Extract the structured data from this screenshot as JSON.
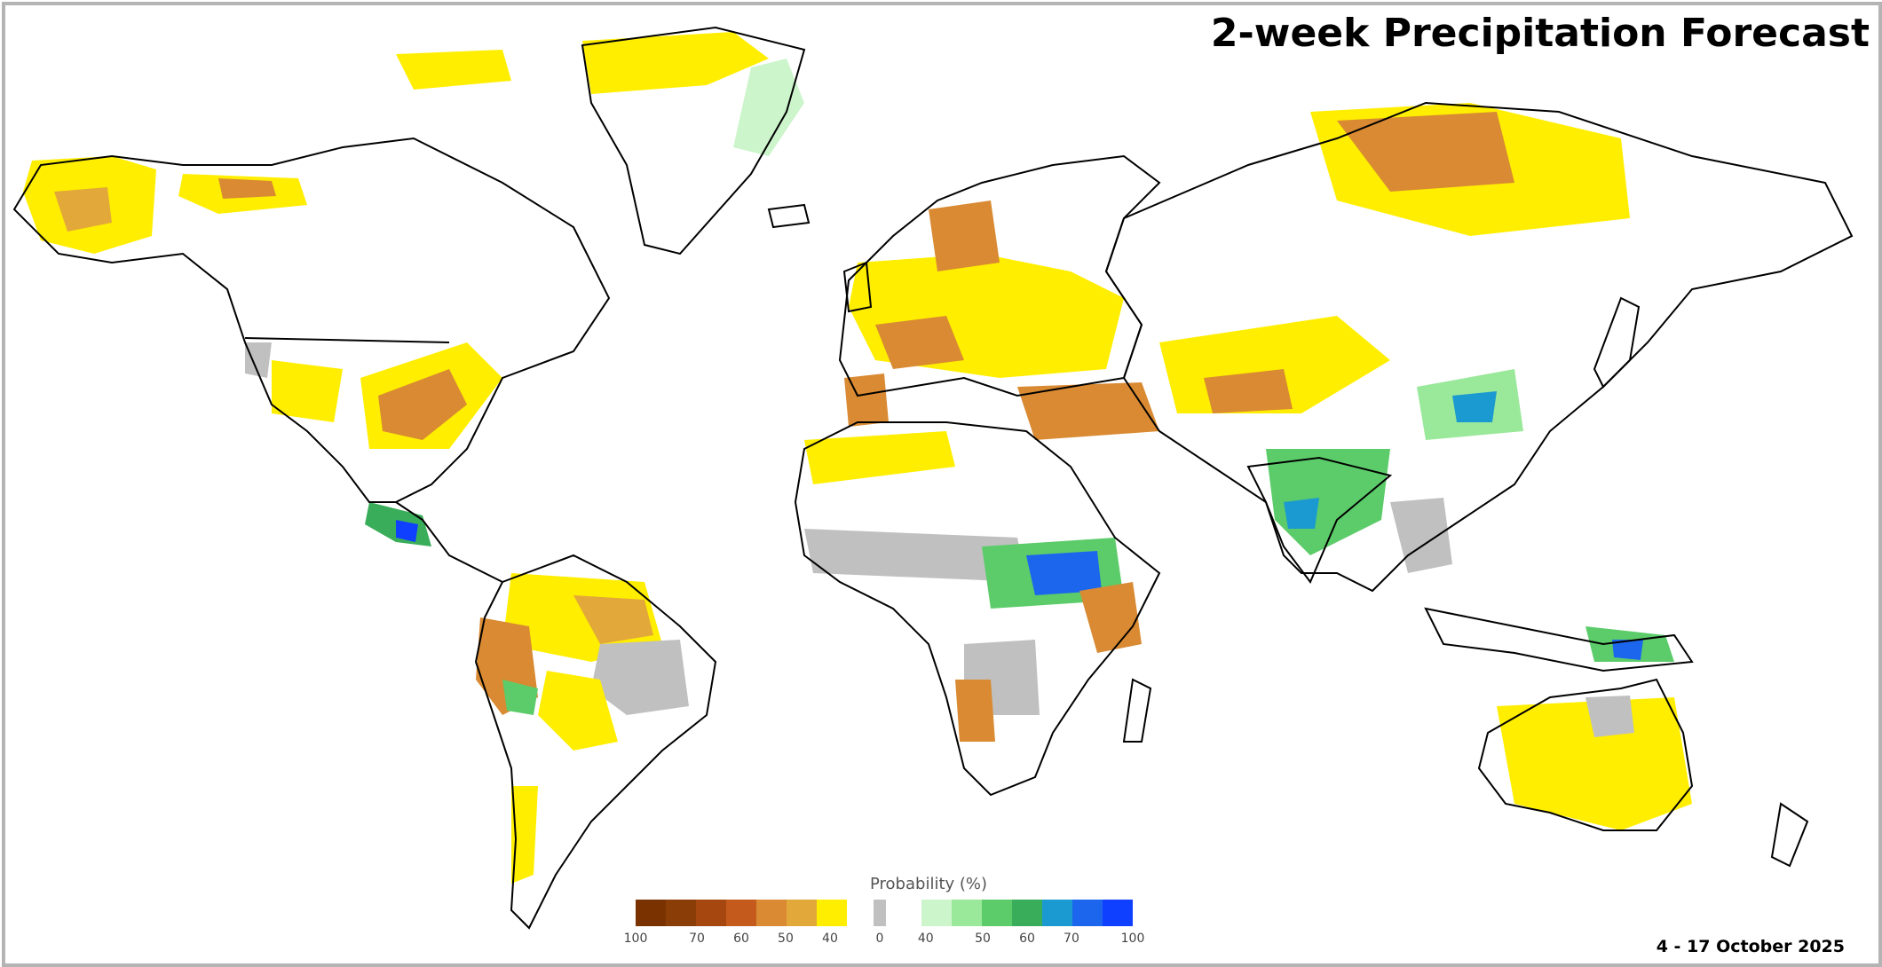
{
  "title": "2-week Precipitation Forecast",
  "date_range": "4 - 17 October 2025",
  "legend": {
    "title": "Probability (%)",
    "dry_colors": [
      "#7a3300",
      "#8a3d06",
      "#a5470f",
      "#c45a1c",
      "#d98a32",
      "#e3a83a",
      "#ffee00"
    ],
    "neutral_color": "#c0c0c0",
    "wet_colors": [
      "#ccf5cc",
      "#9ae89a",
      "#5ccc6a",
      "#3aad5a",
      "#1a9ad0",
      "#1c66ee",
      "#1040ff"
    ],
    "ticks_dry": [
      "100",
      "70",
      "60",
      "50",
      "40"
    ],
    "tick_neutral": "0",
    "ticks_wet": [
      "40",
      "50",
      "60",
      "70",
      "100"
    ]
  },
  "map": {
    "land_outline": "#000000",
    "background": "#ffffff"
  }
}
